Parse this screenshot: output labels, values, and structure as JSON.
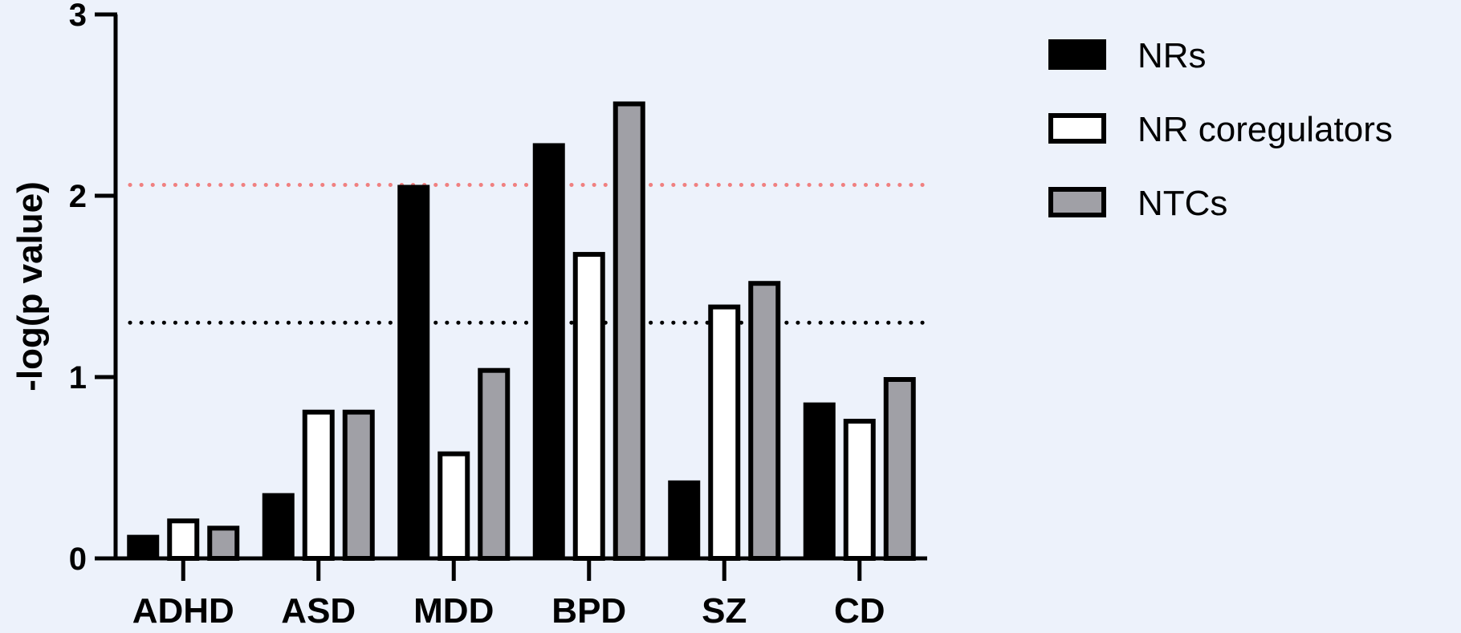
{
  "chart_data": {
    "type": "bar",
    "title": "",
    "xlabel": "",
    "ylabel": "-log(p value)",
    "ylim": [
      0,
      3
    ],
    "yticks": [
      "0",
      "1",
      "2",
      "3"
    ],
    "categories": [
      "ADHD",
      "ASD",
      "MDD",
      "BPD",
      "SZ",
      "CD"
    ],
    "series": [
      {
        "name": "NRs",
        "values": [
          0.13,
          0.36,
          2.06,
          2.29,
          0.43,
          0.86
        ]
      },
      {
        "name": "NR coregulators",
        "values": [
          0.22,
          0.82,
          0.59,
          1.69,
          1.4,
          0.77
        ]
      },
      {
        "name": "NTCs",
        "values": [
          0.18,
          0.82,
          1.05,
          2.52,
          1.53,
          1.0
        ]
      }
    ],
    "reference_lines": [
      2.06,
      1.3
    ],
    "colors": {
      "NRs_fill": "#000000",
      "NR_coregulators_fill": "#ffffff",
      "NTCs_fill": "#a0a0a6",
      "ref_line_upper": "#f08080",
      "ref_line_lower": "#000000"
    },
    "grid": false,
    "legend_position": "top-right"
  }
}
